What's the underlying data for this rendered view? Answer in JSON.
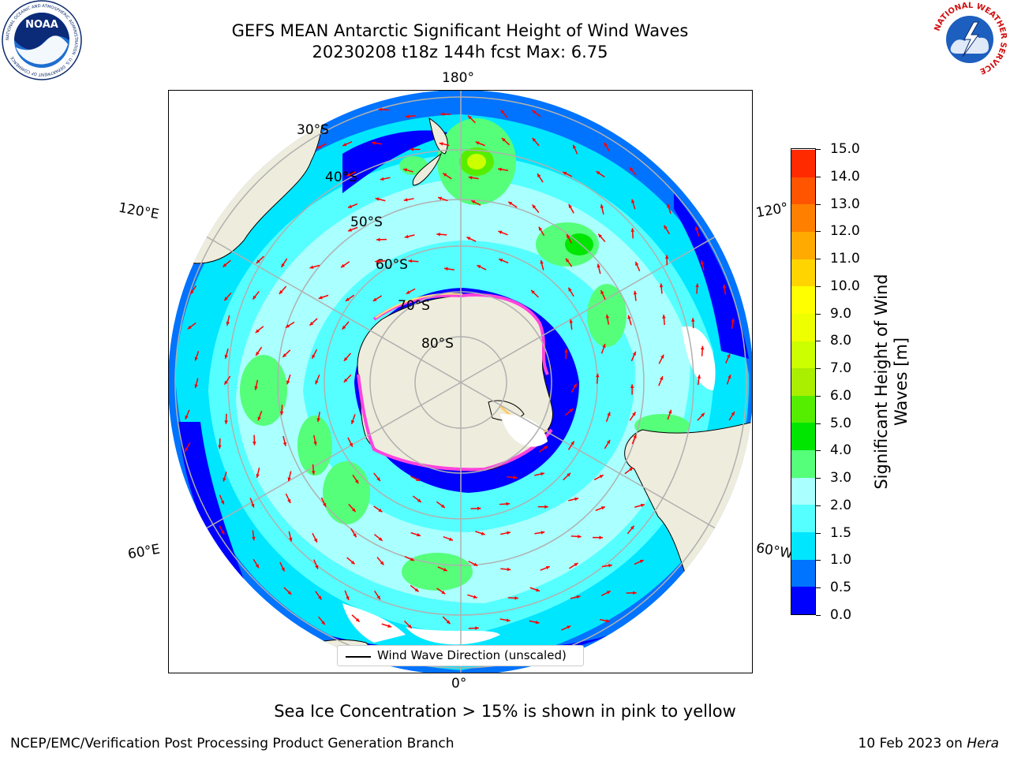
{
  "header": {
    "title_line1": "GEFS MEAN Antarctic Significant Height of Wind Waves",
    "title_line2": "20230208 t18z 144h fcst   Max: 6.75"
  },
  "logos": {
    "noaa_text": "NOAA",
    "noaa_ring_text": "NATIONAL OCEANIC AND ATMOSPHERIC ADMINISTRATION · U.S. DEPARTMENT OF COMMERCE",
    "nws_ring_text": "NATIONAL WEATHER SERVICE"
  },
  "map": {
    "longitude_labels": {
      "top": "180°",
      "bottom": "0°",
      "left_upper": "120°E",
      "left_lower": "60°E",
      "right_upper": "120°",
      "right_lower": "60°W"
    },
    "latitude_labels": [
      "30°S",
      "40°S",
      "50°S",
      "60°S",
      "70°S",
      "80°S"
    ],
    "legend_label": "Wind Wave Direction (unscaled)",
    "colors": {
      "land": "#eeecdc",
      "grid": "#b0b0b0",
      "arrow": "#ff0000"
    }
  },
  "colorbar": {
    "title_line1": "Significant Height of Wind",
    "title_line2": "Waves [m]",
    "ticks": [
      "0.0",
      "0.5",
      "1.0",
      "1.5",
      "2.0",
      "3.0",
      "4.0",
      "5.0",
      "6.0",
      "7.0",
      "8.0",
      "9.0",
      "10.0",
      "11.0",
      "12.0",
      "13.0",
      "14.0",
      "15.0"
    ],
    "bins": [
      "#0000ff",
      "#0073ff",
      "#00e6ff",
      "#55ffff",
      "#aaffff",
      "#55ff7a",
      "#00e600",
      "#55ee00",
      "#aaee00",
      "#ccff00",
      "#eeff00",
      "#ffff00",
      "#ffd400",
      "#ffaa00",
      "#ff8000",
      "#ff5500",
      "#ff2a00"
    ]
  },
  "footer": {
    "ice_note": "Sea Ice Concentration > 15% is shown in pink to yellow",
    "left": "NCEP/EMC/Verification Post Processing Product Generation Branch",
    "right_date": "10 Feb 2023 on ",
    "right_host": "Hera"
  }
}
